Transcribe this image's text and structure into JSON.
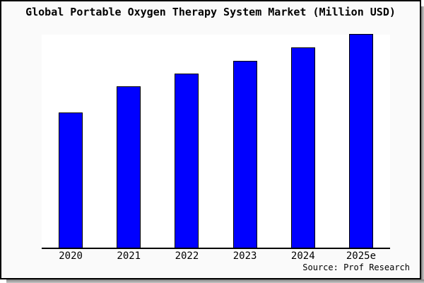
{
  "title": "Global Portable Oxygen Therapy System Market (Million USD)",
  "source_note": "Source: Prof Research",
  "colors": {
    "bar_fill": "#0000ff",
    "bar_border": "#000000",
    "figure_bg": "#fafafa",
    "plot_bg": "#ffffff",
    "axis": "#000000",
    "figure_border": "#000000",
    "shadow_dark": "#808080",
    "shadow_light": "#c8c8c8",
    "text": "#000000"
  },
  "chart_data": {
    "type": "bar",
    "title": "Global Portable Oxygen Therapy System Market (Million USD)",
    "categories": [
      "2020",
      "2021",
      "2022",
      "2023",
      "2024",
      "2025e"
    ],
    "values": [
      62.8,
      75.0,
      81.1,
      87.2,
      93.4,
      99.8
    ],
    "value_note": "No y-axis scale or data labels shown in image; values are relative bar heights in percent of plot height",
    "xlabel": "",
    "ylabel": "",
    "ylim": [
      0,
      100
    ],
    "grid": false,
    "legend": false,
    "bar_color": "#0000ff",
    "annotations": [
      "Source: Prof Research"
    ]
  }
}
